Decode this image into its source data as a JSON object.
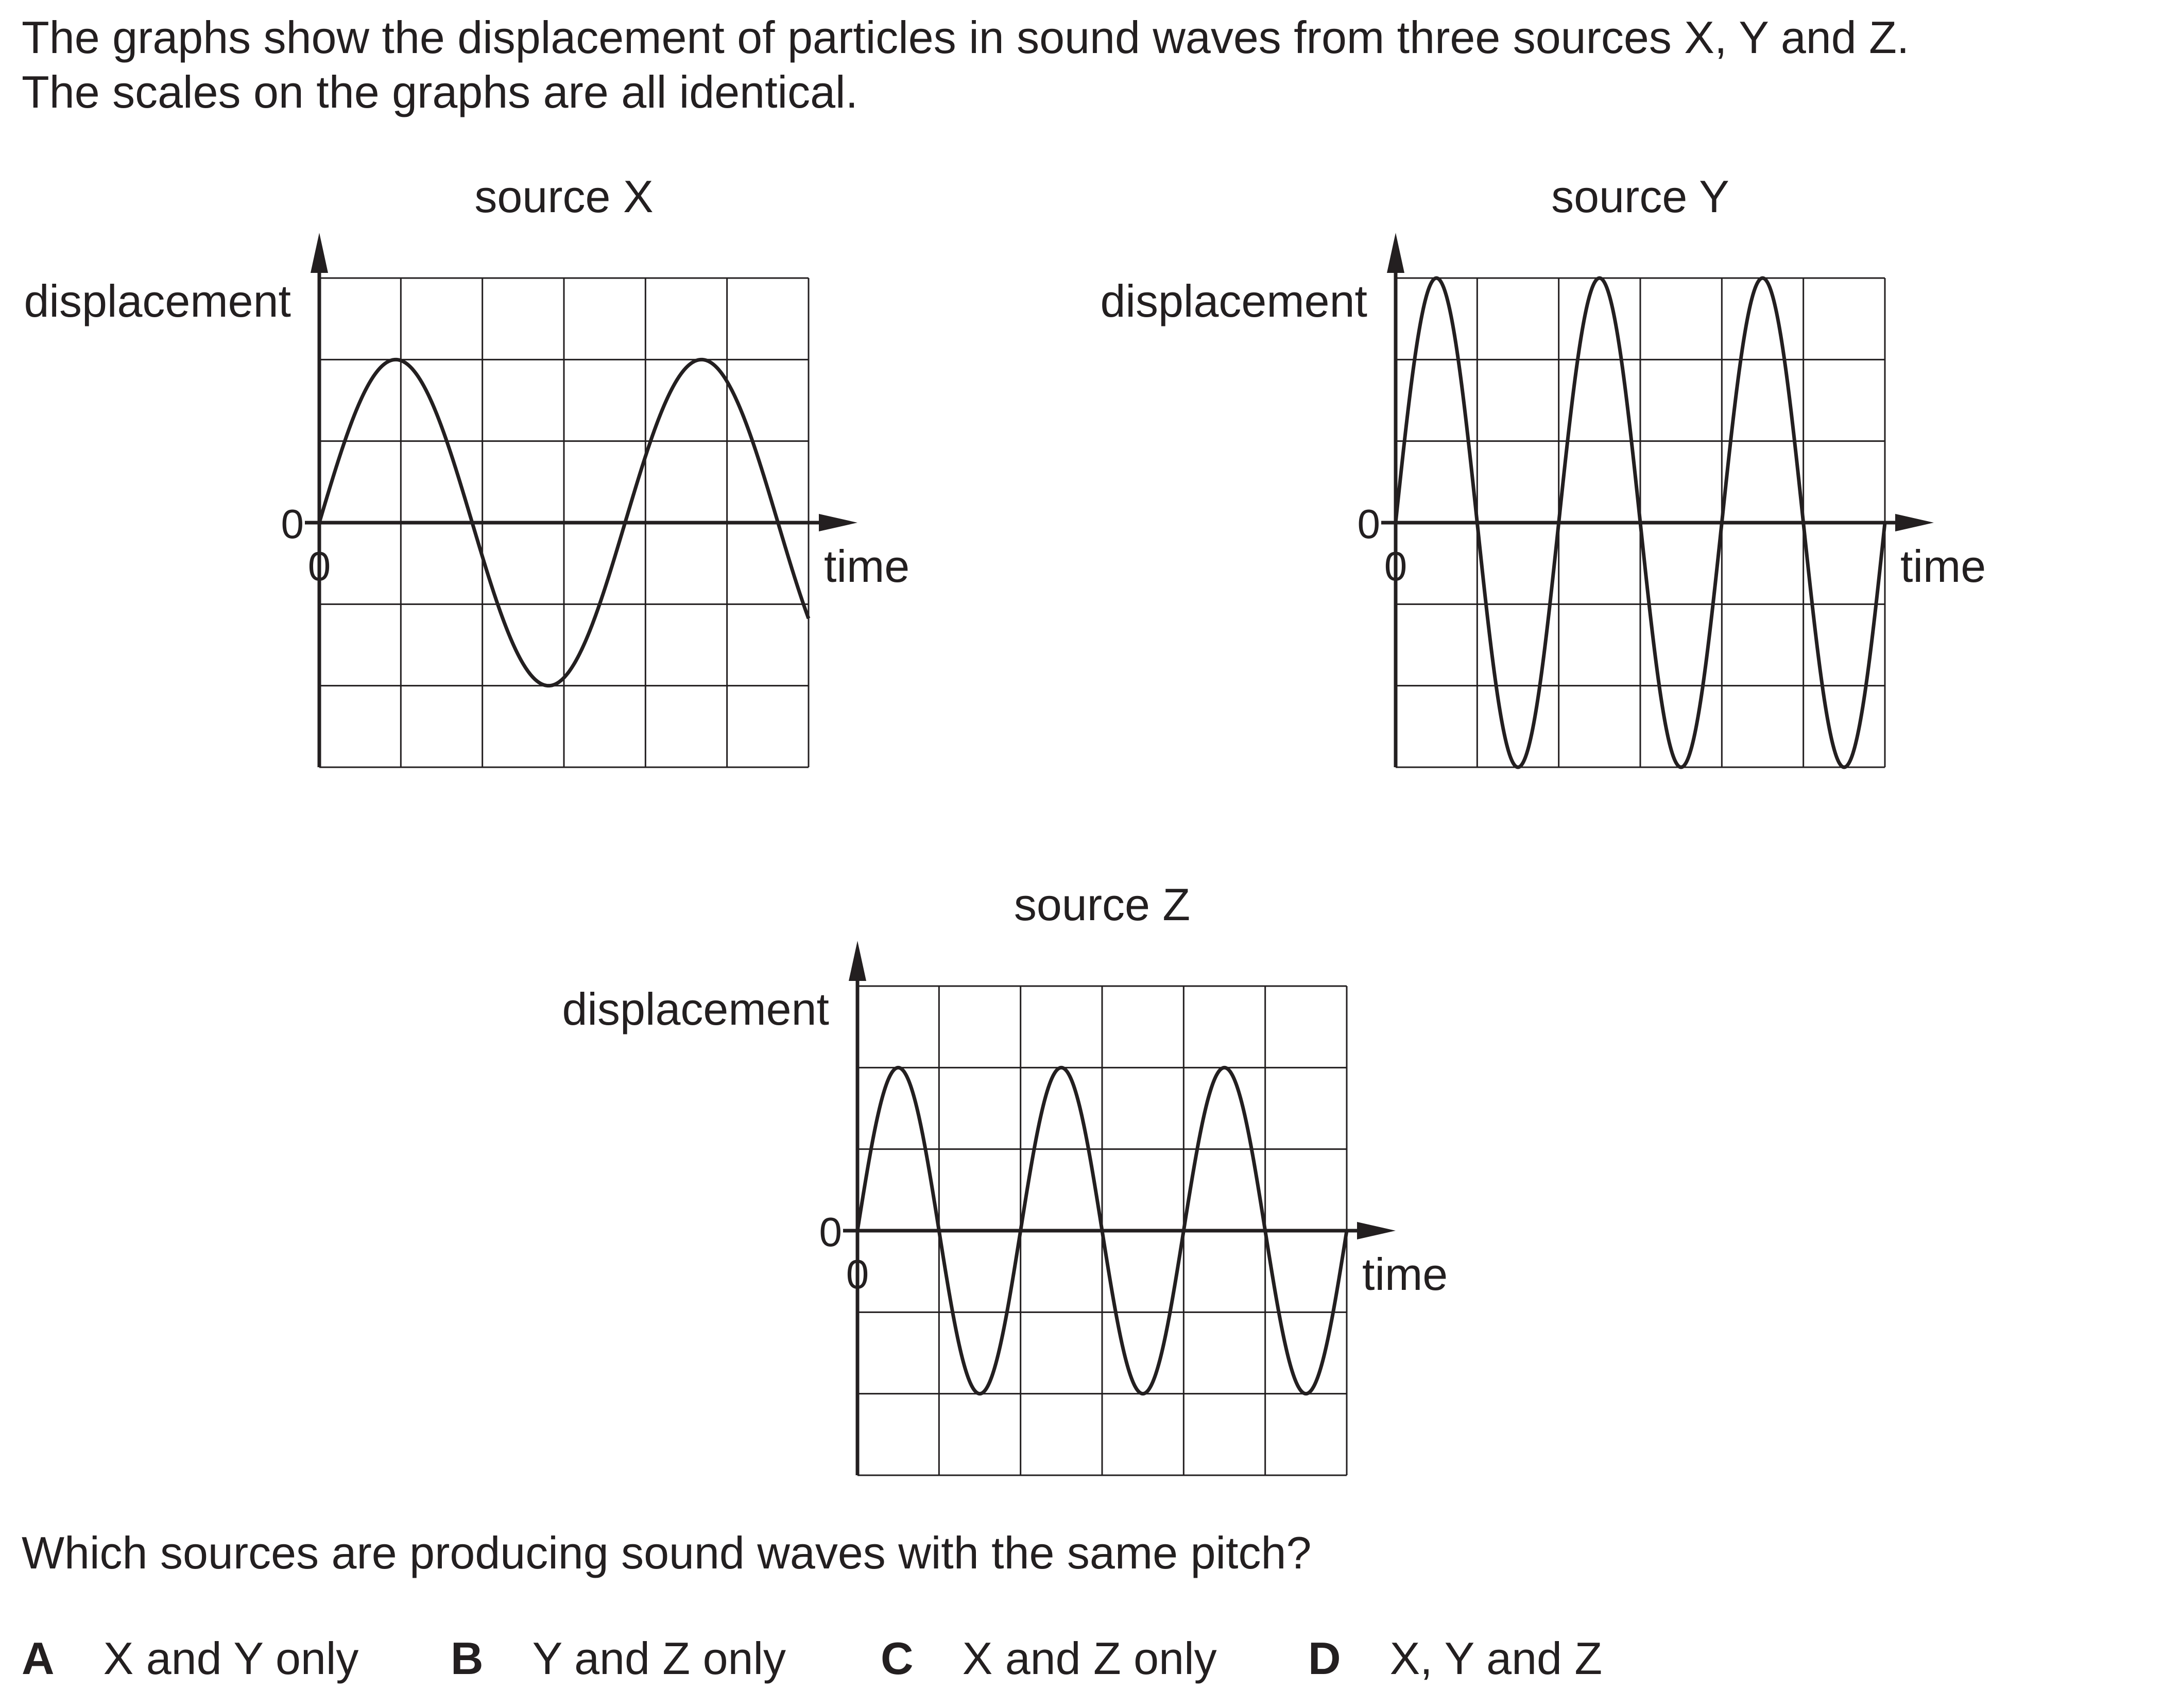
{
  "intro": {
    "line1": "The graphs show the displacement of particles in sound waves from three sources X, Y and Z.",
    "line2": "The scales on the graphs are all identical."
  },
  "chart_data": [
    {
      "type": "line",
      "title": "source X",
      "ylabel": "displacement",
      "xlabel": "time",
      "x_tick_labels": [
        "0"
      ],
      "y_tick_labels": [
        "0"
      ],
      "xlim": [
        0,
        6
      ],
      "ylim": [
        -3,
        3
      ],
      "grid": true,
      "series": [
        {
          "amplitude": 2,
          "cycles_per_xlim": 1.6,
          "phase": 0
        }
      ]
    },
    {
      "type": "line",
      "title": "source Y",
      "ylabel": "displacement",
      "xlabel": "time",
      "x_tick_labels": [
        "0"
      ],
      "y_tick_labels": [
        "0"
      ],
      "xlim": [
        0,
        6
      ],
      "ylim": [
        -3,
        3
      ],
      "grid": true,
      "series": [
        {
          "amplitude": 3,
          "cycles_per_xlim": 3,
          "phase": 0
        }
      ]
    },
    {
      "type": "line",
      "title": "source Z",
      "ylabel": "displacement",
      "xlabel": "time",
      "x_tick_labels": [
        "0"
      ],
      "y_tick_labels": [
        "0"
      ],
      "xlim": [
        0,
        6
      ],
      "ylim": [
        -3,
        3
      ],
      "grid": true,
      "series": [
        {
          "amplitude": 2,
          "cycles_per_xlim": 3,
          "phase": 0
        }
      ]
    }
  ],
  "question": "Which sources are producing sound waves with the same pitch?",
  "options": [
    {
      "letter": "A",
      "text": "X and Y only"
    },
    {
      "letter": "B",
      "text": "Y and Z only"
    },
    {
      "letter": "C",
      "text": "X and Z only"
    },
    {
      "letter": "D",
      "text": "X, Y and Z"
    }
  ],
  "colors": {
    "ink": "#231f20",
    "grid": "#231f20",
    "background": "#ffffff"
  }
}
